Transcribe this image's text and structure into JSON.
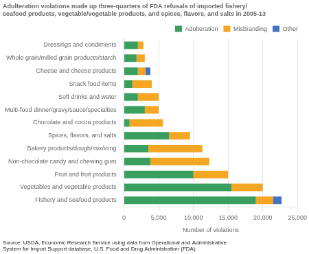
{
  "chart_data": {
    "type": "bar",
    "orientation": "horizontal",
    "stacked": true,
    "title": "Adulteration violations made up three-quarters of FDA refusals of imported fishery/\nseafood products, vegetable/vegetable products, and spices, flavors, and salts in 2005-13",
    "source": "Source: USDA, Economic Research Service using data from Operational and Administrative\nSystem for Import Support database, U.S. Food and Drug Administration (FDA).",
    "xlabel": "Number of violations",
    "categories": [
      "Fishery and seafood products",
      "Vegetables and vegetable products",
      "Fruit and fruit products",
      "Non-chocolate candy and chewing gum",
      "Bakery products/dough/mix/icing",
      "Spices, flavors, and salts",
      "Chocolate and cocoa products",
      "Multi-food dinner/gravy/sauce/specialties",
      "Soft drinks and water",
      "Snack food items",
      "Cheese and cheese products",
      "Whole grain/milled grain products/starch",
      "Dressings and condiments"
    ],
    "series": [
      {
        "name": "Adulteration",
        "color": "#3a9e5f",
        "values": [
          19000,
          15500,
          10000,
          3800,
          3500,
          6500,
          800,
          3000,
          2000,
          1200,
          2000,
          1800,
          2000
        ]
      },
      {
        "name": "Misbranding",
        "color": "#f5a623",
        "values": [
          2500,
          4500,
          5000,
          8500,
          7800,
          3000,
          4800,
          2000,
          3000,
          2800,
          1100,
          1200,
          800
        ]
      },
      {
        "name": "Other",
        "color": "#4472c4",
        "values": [
          1200,
          0,
          0,
          0,
          0,
          0,
          0,
          0,
          0,
          0,
          700,
          0,
          0
        ]
      }
    ],
    "xlim": [
      0,
      25000
    ],
    "xticks": [
      0,
      {
        "value": 5000,
        "label": "5,000"
      },
      {
        "value": 10000,
        "label": "10,000"
      },
      {
        "value": 15000,
        "label": "15,000"
      },
      {
        "value": 20000,
        "label": "20,000"
      },
      {
        "value": 25000,
        "label": "25,000"
      }
    ],
    "grid": true,
    "legend": "top"
  }
}
